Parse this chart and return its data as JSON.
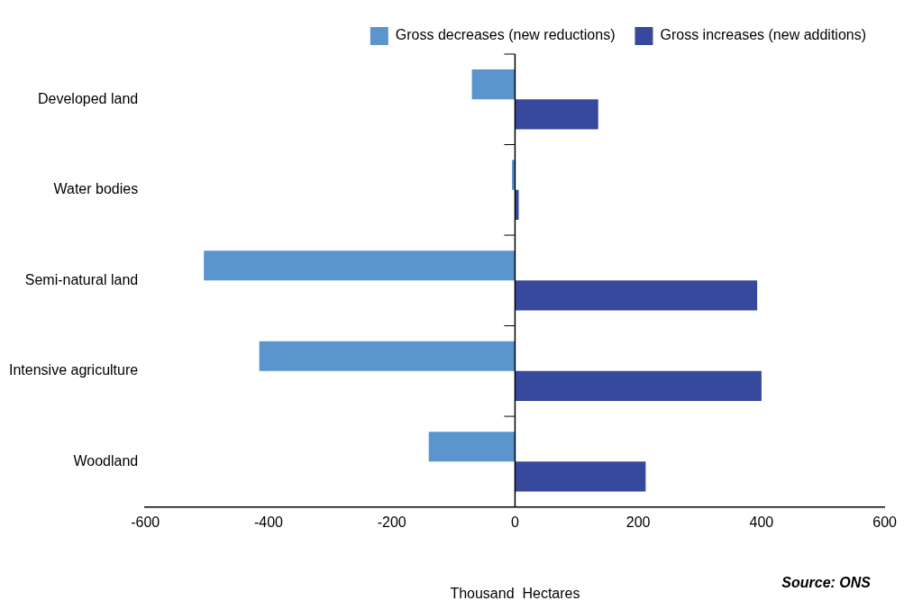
{
  "chart_data": {
    "type": "bar",
    "orientation": "horizontal",
    "xlabel": "Thousand  Hectares",
    "categories": [
      "Developed land",
      "Water bodies",
      "Semi-natural land",
      "Intensive agriculture",
      "Woodland"
    ],
    "series": [
      {
        "name": "Gross decreases (new reductions)",
        "color": "#5b95cd",
        "values": [
          -70,
          -5,
          -505,
          -415,
          -140
        ]
      },
      {
        "name": "Gross increases (new additions)",
        "color": "#36499d",
        "values": [
          135,
          6,
          393,
          400,
          212
        ]
      }
    ],
    "xlim": [
      -600,
      600
    ],
    "xticks": [
      -600,
      -400,
      -200,
      0,
      200,
      400,
      600
    ],
    "legend": "top right",
    "annotations": [
      "Source: ONS"
    ]
  }
}
